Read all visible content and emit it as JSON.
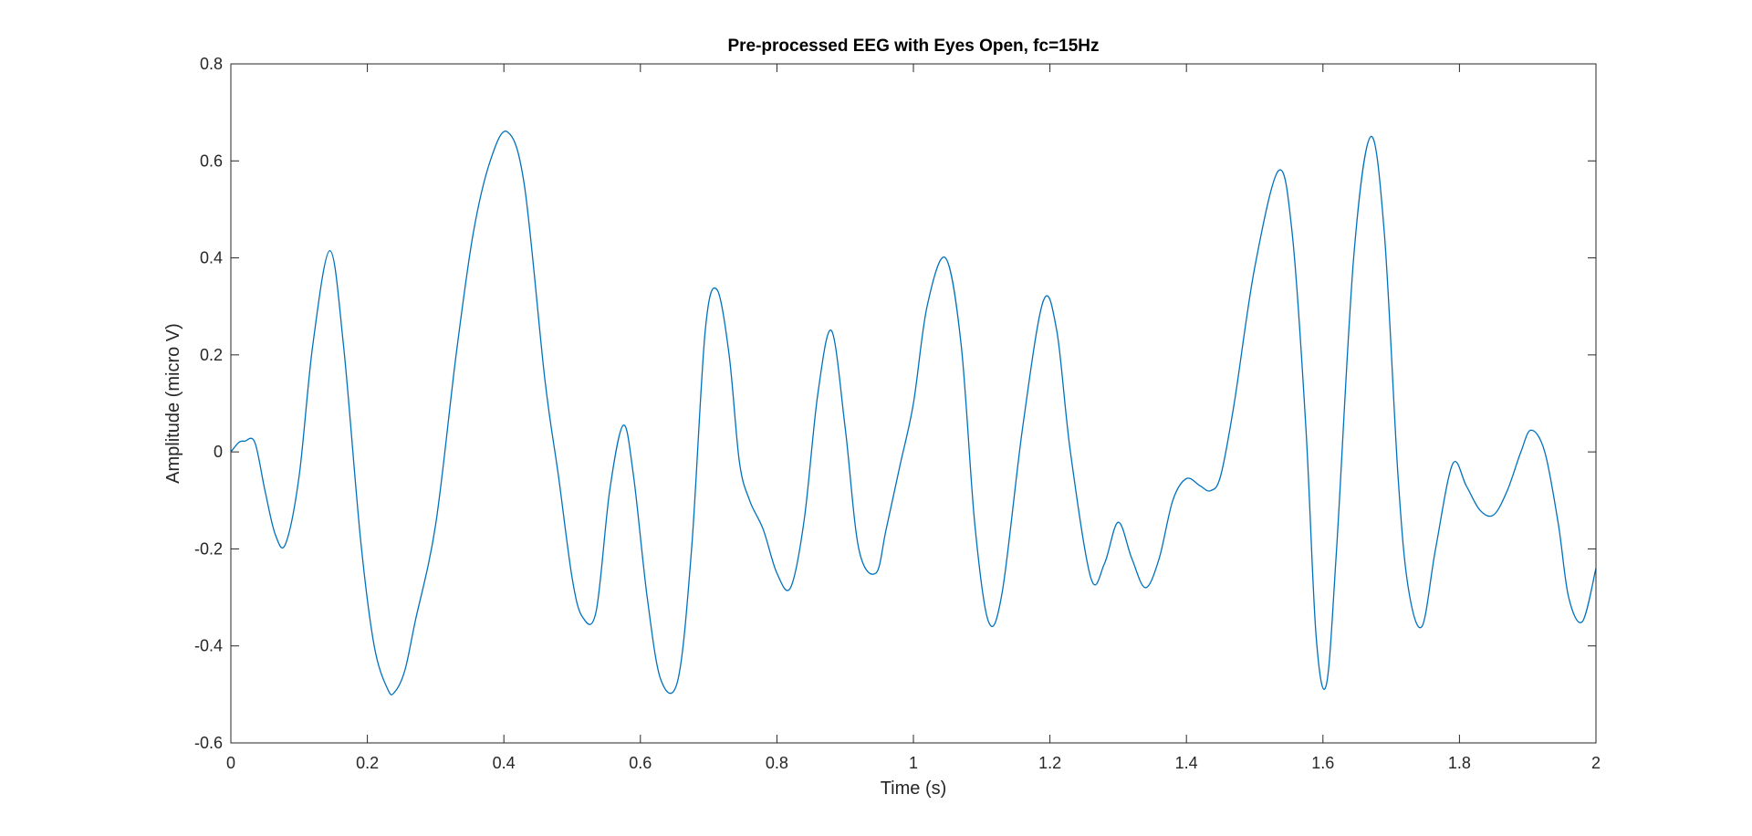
{
  "chart_data": {
    "type": "line",
    "title": "Pre-processed EEG with Eyes Open, fc=15Hz",
    "xlabel": "Time (s)",
    "ylabel": "Amplitude (micro V)",
    "xlim": [
      0,
      2
    ],
    "ylim": [
      -0.6,
      0.8
    ],
    "xticks": [
      0,
      0.2,
      0.4,
      0.6,
      0.8,
      1,
      1.2,
      1.4,
      1.6,
      1.8,
      2
    ],
    "xtick_labels": [
      "0",
      "0.2",
      "0.4",
      "0.6",
      "0.8",
      "1",
      "1.2",
      "1.4",
      "1.6",
      "1.8",
      "2"
    ],
    "yticks": [
      -0.6,
      -0.4,
      -0.2,
      0,
      0.2,
      0.4,
      0.6,
      0.8
    ],
    "ytick_labels": [
      "-0.6",
      "-0.4",
      "-0.2",
      "0",
      "0.2",
      "0.4",
      "0.6",
      "0.8"
    ],
    "grid": false,
    "box": true,
    "line_color": "#0072BD",
    "series": [
      {
        "x": [
          0,
          0.012,
          0.02,
          0.035,
          0.05,
          0.065,
          0.08,
          0.1,
          0.12,
          0.145,
          0.165,
          0.19,
          0.21,
          0.23,
          0.24,
          0.255,
          0.27,
          0.3,
          0.33,
          0.355,
          0.38,
          0.405,
          0.43,
          0.46,
          0.48,
          0.5,
          0.515,
          0.535,
          0.555,
          0.575,
          0.59,
          0.61,
          0.63,
          0.655,
          0.675,
          0.695,
          0.712,
          0.73,
          0.745,
          0.76,
          0.78,
          0.8,
          0.82,
          0.84,
          0.86,
          0.88,
          0.9,
          0.92,
          0.945,
          0.96,
          0.98,
          1.0,
          1.02,
          1.047,
          1.07,
          1.09,
          1.11,
          1.13,
          1.16,
          1.19,
          1.21,
          1.23,
          1.26,
          1.28,
          1.3,
          1.32,
          1.34,
          1.36,
          1.38,
          1.4,
          1.42,
          1.435,
          1.45,
          1.47,
          1.5,
          1.535,
          1.555,
          1.575,
          1.59,
          1.605,
          1.62,
          1.645,
          1.67,
          1.69,
          1.71,
          1.725,
          1.745,
          1.765,
          1.79,
          1.81,
          1.83,
          1.85,
          1.87,
          1.89,
          1.905,
          1.925,
          1.945,
          1.96,
          1.98,
          2.0
        ],
        "y": [
          0.0,
          0.02,
          0.022,
          0.02,
          -0.08,
          -0.17,
          -0.19,
          -0.05,
          0.22,
          0.415,
          0.22,
          -0.18,
          -0.4,
          -0.49,
          -0.495,
          -0.45,
          -0.35,
          -0.15,
          0.2,
          0.45,
          0.6,
          0.66,
          0.55,
          0.15,
          -0.05,
          -0.26,
          -0.34,
          -0.33,
          -0.08,
          0.055,
          -0.05,
          -0.3,
          -0.47,
          -0.47,
          -0.2,
          0.25,
          0.335,
          0.2,
          -0.02,
          -0.1,
          -0.16,
          -0.25,
          -0.28,
          -0.14,
          0.12,
          0.25,
          0.05,
          -0.2,
          -0.25,
          -0.16,
          -0.03,
          0.1,
          0.3,
          0.4,
          0.22,
          -0.15,
          -0.35,
          -0.29,
          0.05,
          0.31,
          0.25,
          0.0,
          -0.26,
          -0.23,
          -0.145,
          -0.22,
          -0.28,
          -0.22,
          -0.1,
          -0.055,
          -0.07,
          -0.08,
          -0.05,
          0.1,
          0.38,
          0.58,
          0.45,
          0.05,
          -0.38,
          -0.48,
          -0.2,
          0.4,
          0.65,
          0.45,
          -0.05,
          -0.28,
          -0.36,
          -0.2,
          -0.025,
          -0.07,
          -0.12,
          -0.13,
          -0.08,
          0.0,
          0.045,
          0.0,
          -0.15,
          -0.3,
          -0.35,
          -0.24
        ]
      }
    ]
  }
}
